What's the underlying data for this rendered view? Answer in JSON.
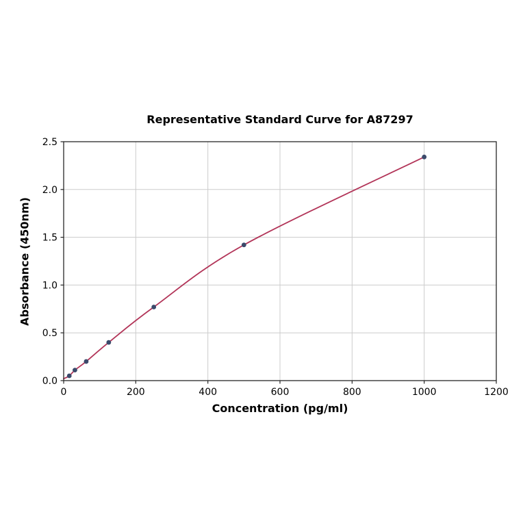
{
  "chart_data": {
    "type": "line",
    "title": "Representative Standard Curve for A87297",
    "xlabel": "Concentration (pg/ml)",
    "ylabel": "Absorbance (450nm)",
    "xlim": [
      0,
      1200
    ],
    "ylim": [
      0.0,
      2.5
    ],
    "xticks": [
      0,
      200,
      400,
      600,
      800,
      1000,
      1200
    ],
    "xtick_labels": [
      "0",
      "200",
      "400",
      "600",
      "800",
      "1000",
      "1200"
    ],
    "yticks": [
      0.0,
      0.5,
      1.0,
      1.5,
      2.0,
      2.5
    ],
    "ytick_labels": [
      "0.0",
      "0.5",
      "1.0",
      "1.5",
      "2.0",
      "2.5"
    ],
    "grid": true,
    "legend": "none",
    "series": [
      {
        "name": "standard-curve",
        "x": [
          15.6,
          31.2,
          62.5,
          125,
          250,
          500,
          1000
        ],
        "y": [
          0.05,
          0.11,
          0.2,
          0.4,
          0.77,
          1.42,
          2.34
        ],
        "curve_start": [
          0,
          0.02
        ],
        "line_color": "#b23458",
        "marker_color": "#3b4a6b"
      }
    ],
    "colors": {
      "grid": "#cccccc",
      "spine": "#262626",
      "tick_label": "#000000",
      "background": "#ffffff"
    }
  }
}
